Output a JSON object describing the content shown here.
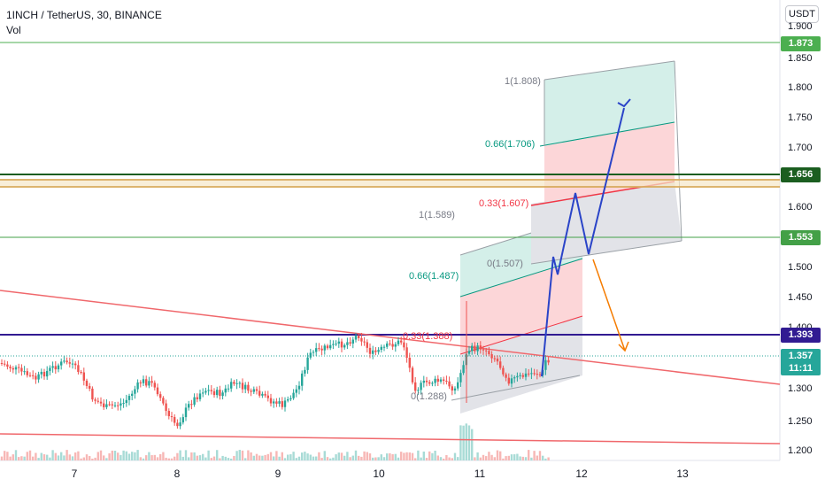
{
  "legend": {
    "symbol": "1INCH / TetherUS, 30, BINANCE",
    "indicator": "Vol"
  },
  "currency_button": "USDT",
  "price_axis": [
    "1.900",
    "1.850",
    "1.800",
    "1.750",
    "1.700",
    "1.650",
    "1.600",
    "1.550",
    "1.500",
    "1.450",
    "1.400",
    "1.350",
    "1.300",
    "1.250",
    "1.200"
  ],
  "time_axis": [
    "7",
    "8",
    "9",
    "10",
    "11",
    "12",
    "13"
  ],
  "price_badges": [
    {
      "id": "resistance-1873",
      "text": "1.873",
      "color": "#4caf50"
    },
    {
      "id": "resistance-1656",
      "text": "1.656",
      "color": "#1b5e20"
    },
    {
      "id": "resistance-1553",
      "text": "1.553",
      "color": "#43a047"
    },
    {
      "id": "level-1393",
      "text": "1.393",
      "color": "#311b92"
    },
    {
      "id": "last-price",
      "text": "1.357",
      "countdown": "11:11",
      "color": "#26a69a"
    }
  ],
  "fib_lower": {
    "levels": [
      {
        "text": "1(1.589)",
        "color": "#787b86"
      },
      {
        "text": "0.66(1.487)",
        "color": "#089981"
      },
      {
        "text": "0.33(1.388)",
        "color": "#f23645"
      },
      {
        "text": "0(1.288)",
        "color": "#787b86"
      }
    ]
  },
  "fib_upper": {
    "levels": [
      {
        "text": "1(1.808)",
        "color": "#787b86"
      },
      {
        "text": "0.66(1.706)",
        "color": "#089981"
      },
      {
        "text": "0.33(1.607)",
        "color": "#f23645"
      },
      {
        "text": "0(1.507)",
        "color": "#787b86"
      }
    ]
  },
  "colors": {
    "candle_up": "#26a69a",
    "candle_down": "#ef5350",
    "trendline": "#f0686c",
    "projection_bull": "#2a44c8",
    "projection_bear": "#f57c00"
  }
}
